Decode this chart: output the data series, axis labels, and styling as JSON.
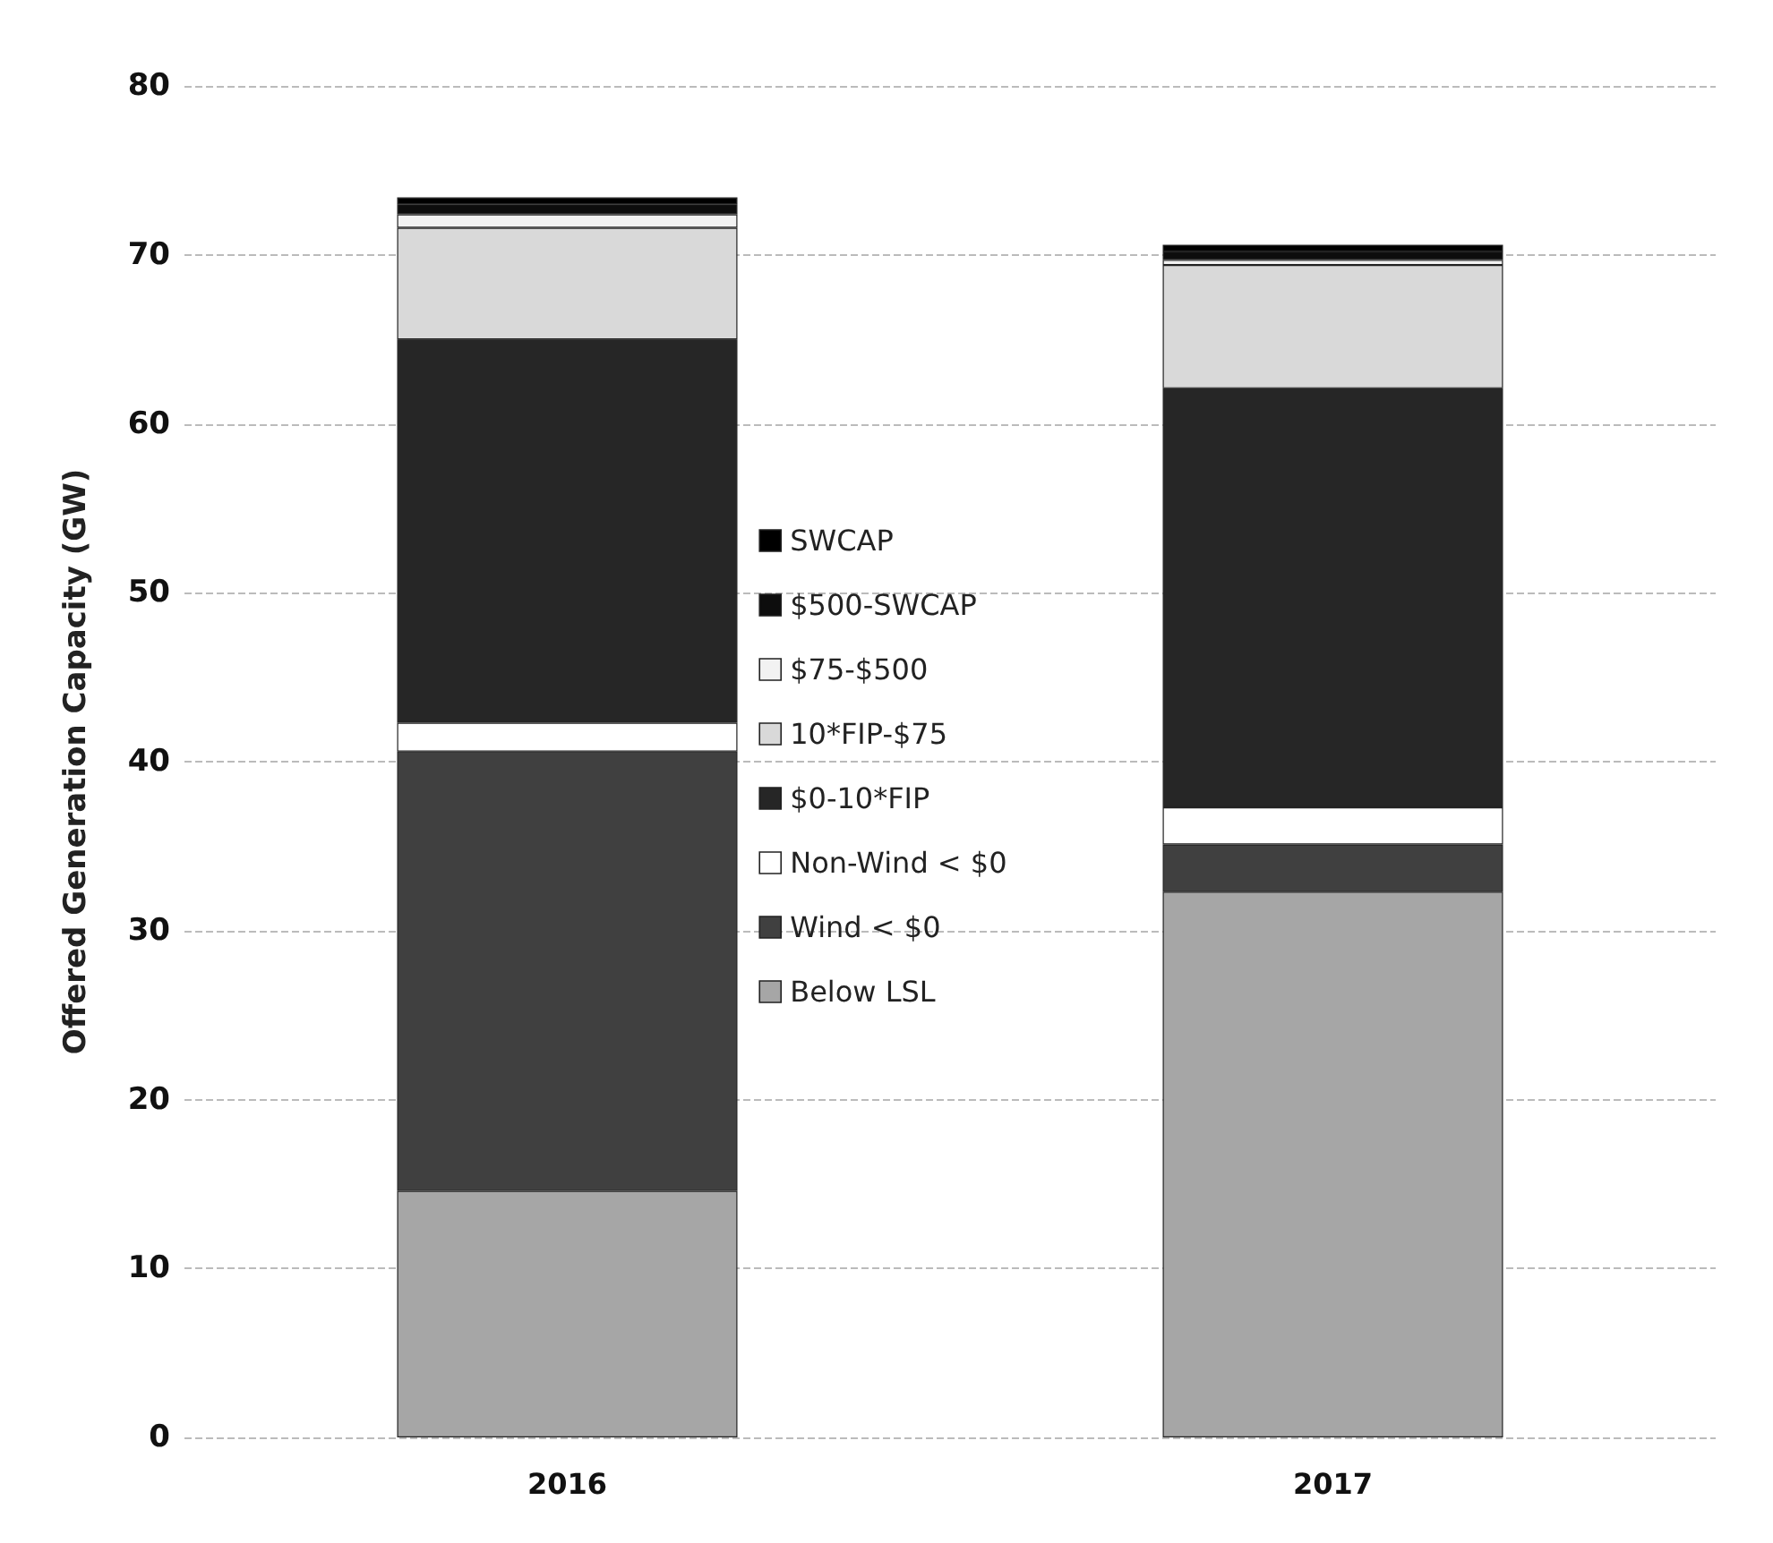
{
  "chart_data": {
    "type": "bar",
    "stacked": true,
    "ylabel": "Offered Generation Capacity (GW)",
    "categories": [
      "2016",
      "2017"
    ],
    "ylim": [
      0,
      80
    ],
    "yticks": [
      0,
      10,
      20,
      30,
      40,
      50,
      60,
      70,
      80
    ],
    "grid": "y",
    "legend": "center",
    "series": [
      {
        "name": "Below LSL",
        "color": "#a6a6a6",
        "values": [
          14.6,
          32.3
        ]
      },
      {
        "name": "Wind < $0",
        "color": "#404040",
        "values": [
          26.0,
          2.8
        ]
      },
      {
        "name": "Non-Wind < $0",
        "color": "#ffffff",
        "values": [
          1.7,
          2.2
        ]
      },
      {
        "name": "$0-10*FIP",
        "color": "#262626",
        "values": [
          22.7,
          24.8
        ]
      },
      {
        "name": "10*FIP-$75",
        "color": "#d9d9d9",
        "values": [
          6.6,
          7.3
        ]
      },
      {
        "name": "$75-$500",
        "color": "#f2f2f2",
        "values": [
          0.8,
          0.3
        ]
      },
      {
        "name": "$500-SWCAP",
        "color": "#0d0d0d",
        "values": [
          0.6,
          0.5
        ]
      },
      {
        "name": "SWCAP",
        "color": "#000000",
        "values": [
          0.4,
          0.4
        ]
      }
    ]
  }
}
